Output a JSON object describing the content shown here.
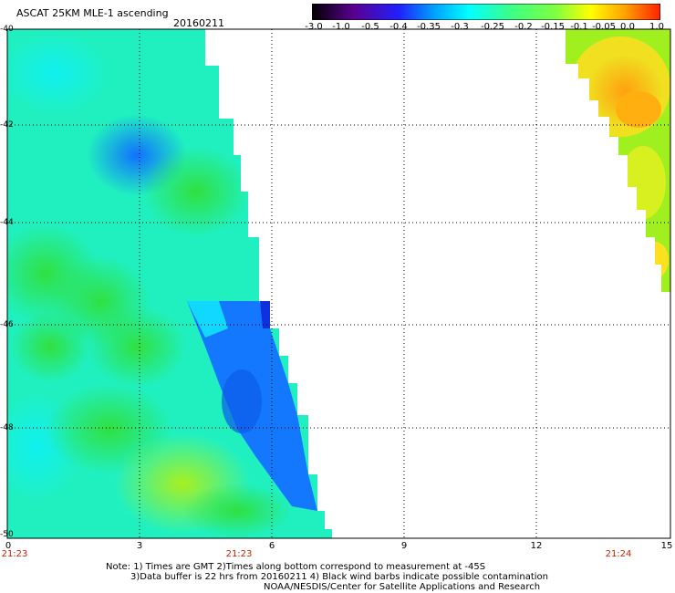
{
  "header": {
    "title": "ASCAT 25KM MLE-1 ascending",
    "date": "20160211"
  },
  "colorbar": {
    "labels": [
      "-3.0",
      "-1.0",
      "-0.5",
      "-0.4",
      "-0.35",
      "-0.3",
      "-0.25",
      "-0.2",
      "-0.15",
      "-0.1",
      "-0.05",
      "0.0",
      "1.0"
    ],
    "colors": [
      "#000000",
      "#5a0090",
      "#2020ff",
      "#00a0ff",
      "#00ffff",
      "#40ff80",
      "#80ff40",
      "#ffff00",
      "#ffa000",
      "#ff2000"
    ]
  },
  "axes": {
    "lat_labels": [
      "-40",
      "-42",
      "-44",
      "-46",
      "-48",
      "-50"
    ],
    "lon_labels": [
      "0",
      "3",
      "6",
      "9",
      "12",
      "15"
    ],
    "time_labels": [
      "21:23",
      "21:23",
      "21:24"
    ]
  },
  "notes": [
    "Note: 1) Times are GMT 2)Times along bottom correspond to measurement at -45S",
    "3)Data buffer is 22 hrs from 20160211 4) Black wind barbs indicate possible contamination",
    "NOAA/NESDIS/Center for Satellite Applications and Research"
  ]
}
